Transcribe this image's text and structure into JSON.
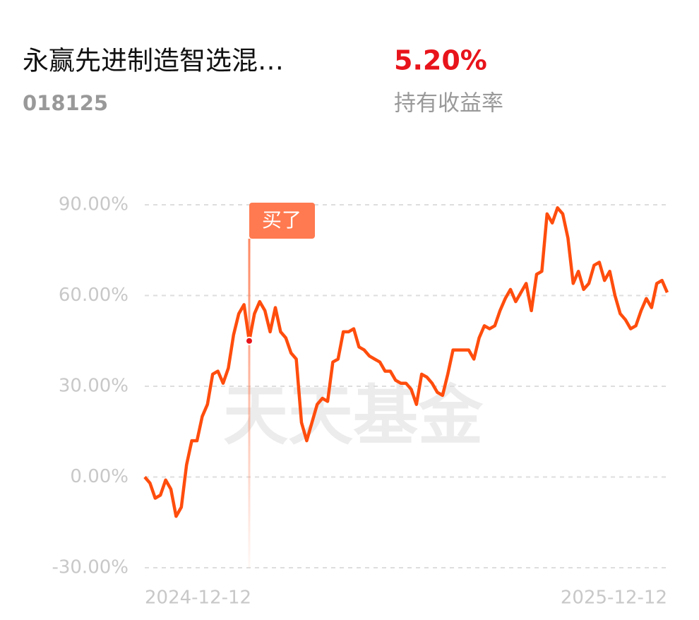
{
  "header": {
    "fund_name": "永赢先进制造智选混…",
    "fund_code": "018125",
    "return_value": "5.20%",
    "return_label": "持有收益率"
  },
  "chart_data": {
    "type": "line",
    "watermark": "天天基金",
    "color": "#ff4d0d",
    "grid": true,
    "ylim": [
      -30,
      90
    ],
    "yticks": [
      {
        "value": -30,
        "label": "-30.00%"
      },
      {
        "value": 0,
        "label": "0.00%"
      },
      {
        "value": 30,
        "label": "30.00%"
      },
      {
        "value": 60,
        "label": "60.00%"
      },
      {
        "value": 90,
        "label": "90.00%"
      }
    ],
    "categories": [
      "2024-12-12",
      null,
      null,
      null,
      null,
      null,
      null,
      null,
      null,
      null,
      null,
      null,
      null,
      null,
      null,
      null,
      null,
      null,
      null,
      null,
      null,
      null,
      null,
      null,
      null,
      null,
      null,
      null,
      null,
      null,
      null,
      null,
      null,
      null,
      null,
      null,
      null,
      null,
      null,
      null,
      null,
      null,
      null,
      null,
      null,
      null,
      null,
      null,
      null,
      null,
      null,
      null,
      null,
      null,
      null,
      null,
      null,
      null,
      null,
      null,
      null,
      null,
      null,
      null,
      null,
      null,
      null,
      null,
      null,
      null,
      null,
      null,
      null,
      null,
      null,
      null,
      null,
      null,
      null,
      null,
      null,
      null,
      null,
      null,
      null,
      null,
      null,
      null,
      null,
      null,
      null,
      null,
      null,
      null,
      null,
      null,
      null,
      null,
      null,
      null,
      "2025-12-12"
    ],
    "values": [
      0,
      -2,
      -7,
      -6,
      -1,
      -4,
      -13,
      -10,
      4,
      12,
      12,
      20,
      24,
      34,
      35,
      31,
      36,
      47,
      54,
      57,
      45,
      54,
      58,
      55,
      48,
      56,
      48,
      46,
      41,
      39,
      18,
      12,
      18,
      24,
      26,
      25,
      38,
      39,
      48,
      48,
      49,
      43,
      42,
      40,
      39,
      38,
      35,
      35,
      32,
      31,
      31,
      29,
      24,
      34,
      33,
      31,
      28,
      27,
      34,
      42,
      42,
      42,
      42,
      39,
      46,
      50,
      49,
      50,
      55,
      59,
      62,
      58,
      61,
      64,
      55,
      67,
      68,
      87,
      84,
      89,
      87,
      79,
      64,
      68,
      62,
      64,
      70,
      71,
      65,
      68,
      60,
      54,
      52,
      49,
      50,
      55,
      59,
      56,
      64,
      65,
      61
    ],
    "annotation": {
      "label": "买了",
      "index": 20
    }
  }
}
